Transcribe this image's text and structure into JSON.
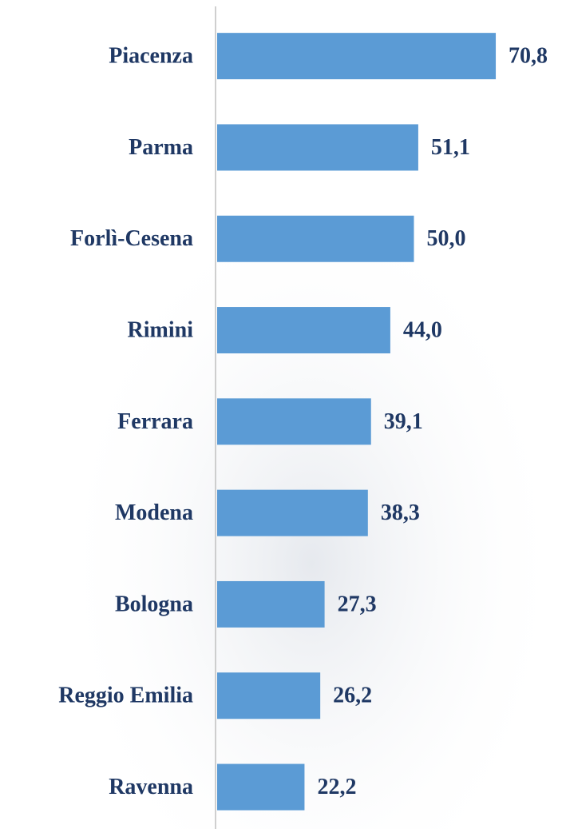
{
  "chart_data": {
    "type": "hbar",
    "categories": [
      "Piacenza",
      "Parma",
      "Forlì-Cesena",
      "Rimini",
      "Ferrara",
      "Modena",
      "Bologna",
      "Reggio Emilia",
      "Ravenna"
    ],
    "values": [
      70.8,
      51.1,
      50.0,
      44.0,
      39.1,
      38.3,
      27.3,
      26.2,
      22.2
    ],
    "value_labels": [
      "70,8",
      "51,1",
      "50,0",
      "44,0",
      "39,1",
      "38,3",
      "27,3",
      "26,2",
      "22,2"
    ],
    "color": "#5b9bd5",
    "xlim": [
      0,
      80
    ]
  }
}
